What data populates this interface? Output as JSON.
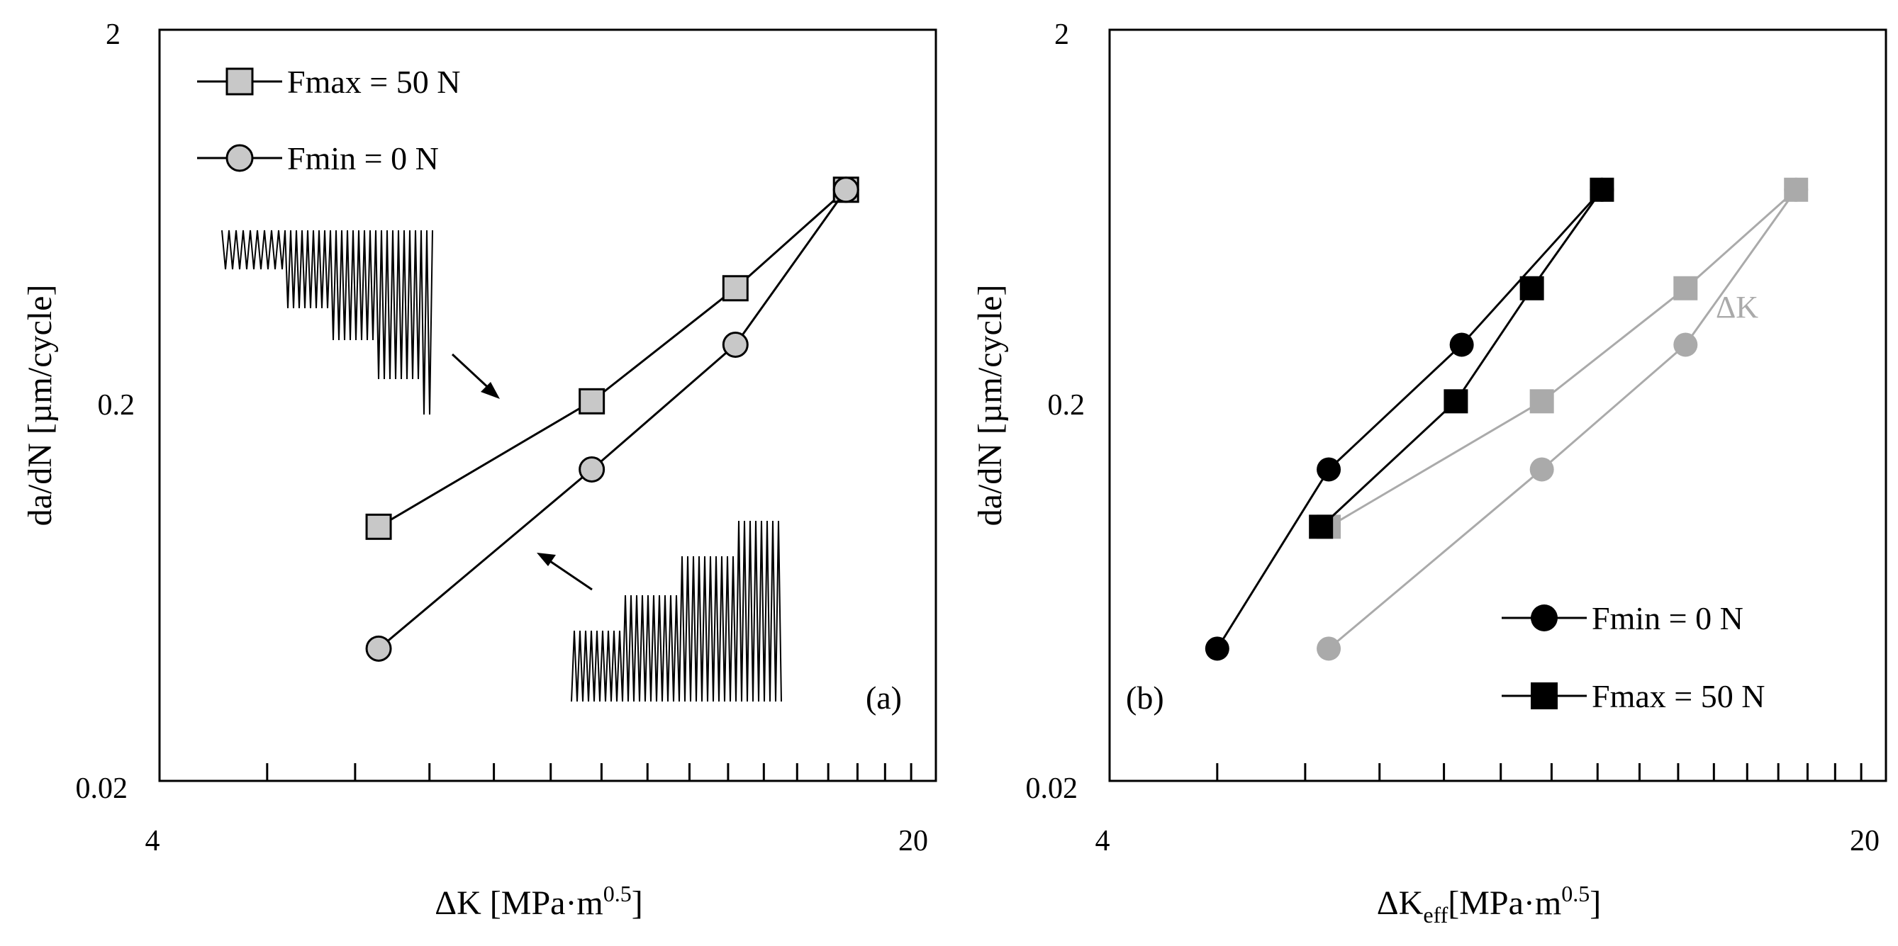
{
  "colors": {
    "black": "#000000",
    "gray_line": "#aaaaaa",
    "marker_gray": "#c8c8c8",
    "frame": "#000000",
    "text": "#000000"
  },
  "chart_data": [
    {
      "id": "a",
      "type": "line",
      "scale": {
        "x": "log",
        "y": "log"
      },
      "xlim": [
        4,
        20
      ],
      "ylim": [
        0.02,
        2
      ],
      "xlabel": {
        "main": "ΔK [MPa·m",
        "sup": "0.5",
        "tail": "]"
      },
      "ylabel": "da/dN [µm/cycle]",
      "x_tick_labels": [
        "4",
        "20"
      ],
      "y_tick_labels": [
        "2",
        "0.2",
        "0.02"
      ],
      "panel_label": "(a)",
      "legend": [
        {
          "label": "Fmax = 50 N",
          "marker": "square"
        },
        {
          "label": "Fmin = 0 N",
          "marker": "circle"
        }
      ],
      "series": [
        {
          "name": "Fmax = 50 N",
          "marker": "square",
          "style": "gray-fill",
          "x": [
            6.3,
            9.8,
            13.2,
            16.6
          ],
          "y": [
            0.095,
            0.205,
            0.41,
            0.75
          ]
        },
        {
          "name": "Fmin = 0 N",
          "marker": "circle",
          "style": "gray-fill",
          "x": [
            6.3,
            9.8,
            13.2,
            16.6
          ],
          "y": [
            0.045,
            0.135,
            0.29,
            0.75
          ]
        }
      ],
      "insets": [
        {
          "description": "load waveform steps (Fmax constant)"
        },
        {
          "description": "load waveform steps (Fmin constant)"
        }
      ]
    },
    {
      "id": "b",
      "type": "line",
      "scale": {
        "x": "log",
        "y": "log"
      },
      "xlim": [
        4,
        20
      ],
      "ylim": [
        0.02,
        2
      ],
      "xlabel": {
        "main": "ΔK",
        "sub": "eff",
        "mid": "[MPa·m",
        "sup": "0.5",
        "tail": "]"
      },
      "ylabel": "da/dN [µm/cycle]",
      "x_tick_labels": [
        "4",
        "20"
      ],
      "y_tick_labels": [
        "2",
        "0.2",
        "0.02"
      ],
      "panel_label": "(b)",
      "annotation": "ΔK",
      "legend": [
        {
          "label": "Fmin = 0 N",
          "marker": "circle"
        },
        {
          "label": "Fmax = 50 N",
          "marker": "square"
        }
      ],
      "series": [
        {
          "name": "Fmin = 0 N (ΔK)",
          "marker": "circle",
          "style": "light",
          "x": [
            6.3,
            9.8,
            13.2,
            16.6
          ],
          "y": [
            0.045,
            0.135,
            0.29,
            0.75
          ]
        },
        {
          "name": "Fmax = 50 N (ΔK)",
          "marker": "square",
          "style": "light",
          "x": [
            6.3,
            9.8,
            13.2,
            16.6
          ],
          "y": [
            0.095,
            0.205,
            0.41,
            0.75
          ]
        },
        {
          "name": "Fmin = 0 N",
          "marker": "circle",
          "style": "dark",
          "x": [
            5.0,
            6.3,
            8.3,
            11.1
          ],
          "y": [
            0.045,
            0.135,
            0.29,
            0.75
          ]
        },
        {
          "name": "Fmax = 50 N",
          "marker": "square",
          "style": "dark",
          "x": [
            6.2,
            8.2,
            9.6,
            11.1
          ],
          "y": [
            0.095,
            0.205,
            0.41,
            0.75
          ]
        }
      ]
    }
  ]
}
